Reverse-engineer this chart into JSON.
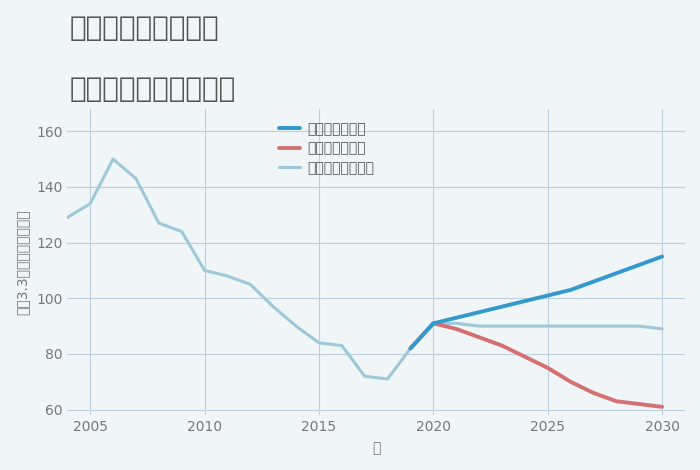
{
  "title_line1": "兵庫県姫路市白国の",
  "title_line2": "中古戸建ての価格推移",
  "xlabel": "年",
  "ylabel": "坪（3.3㎡）単価（万円）",
  "background_color": "#f0f5f8",
  "plot_bg_color": "#f0f5f8",
  "grid_color": "#bed0de",
  "xlim": [
    2004,
    2031
  ],
  "ylim": [
    58,
    168
  ],
  "yticks": [
    60,
    80,
    100,
    120,
    140,
    160
  ],
  "xticks": [
    2005,
    2010,
    2015,
    2020,
    2025,
    2030
  ],
  "good_scenario": {
    "label": "グッドシナリオ",
    "color": "#3399cc",
    "linewidth": 2.8,
    "years": [
      2019,
      2020,
      2021,
      2022,
      2023,
      2024,
      2025,
      2026,
      2027,
      2028,
      2029,
      2030
    ],
    "values": [
      82,
      91,
      93,
      95,
      97,
      99,
      101,
      103,
      106,
      109,
      112,
      115
    ]
  },
  "bad_scenario": {
    "label": "バッドシナリオ",
    "color": "#d47070",
    "linewidth": 2.8,
    "years": [
      2019,
      2020,
      2021,
      2022,
      2023,
      2024,
      2025,
      2026,
      2027,
      2028,
      2029,
      2030
    ],
    "values": [
      82,
      91,
      89,
      86,
      83,
      79,
      75,
      70,
      66,
      63,
      62,
      61
    ]
  },
  "normal_scenario": {
    "label": "ノーマルシナリオ",
    "color": "#9ec8da",
    "linewidth": 2.2,
    "years": [
      2004,
      2005,
      2006,
      2007,
      2008,
      2009,
      2010,
      2011,
      2012,
      2013,
      2014,
      2015,
      2016,
      2017,
      2018,
      2019,
      2020,
      2021,
      2022,
      2023,
      2024,
      2025,
      2026,
      2027,
      2028,
      2029,
      2030
    ],
    "values": [
      129,
      134,
      150,
      143,
      127,
      124,
      110,
      108,
      105,
      97,
      90,
      84,
      83,
      72,
      71,
      82,
      91,
      91,
      90,
      90,
      90,
      90,
      90,
      90,
      90,
      90,
      89
    ]
  },
  "title_color": "#555555",
  "title_fontsize": 20,
  "label_fontsize": 10,
  "tick_fontsize": 10,
  "legend_fontsize": 10
}
